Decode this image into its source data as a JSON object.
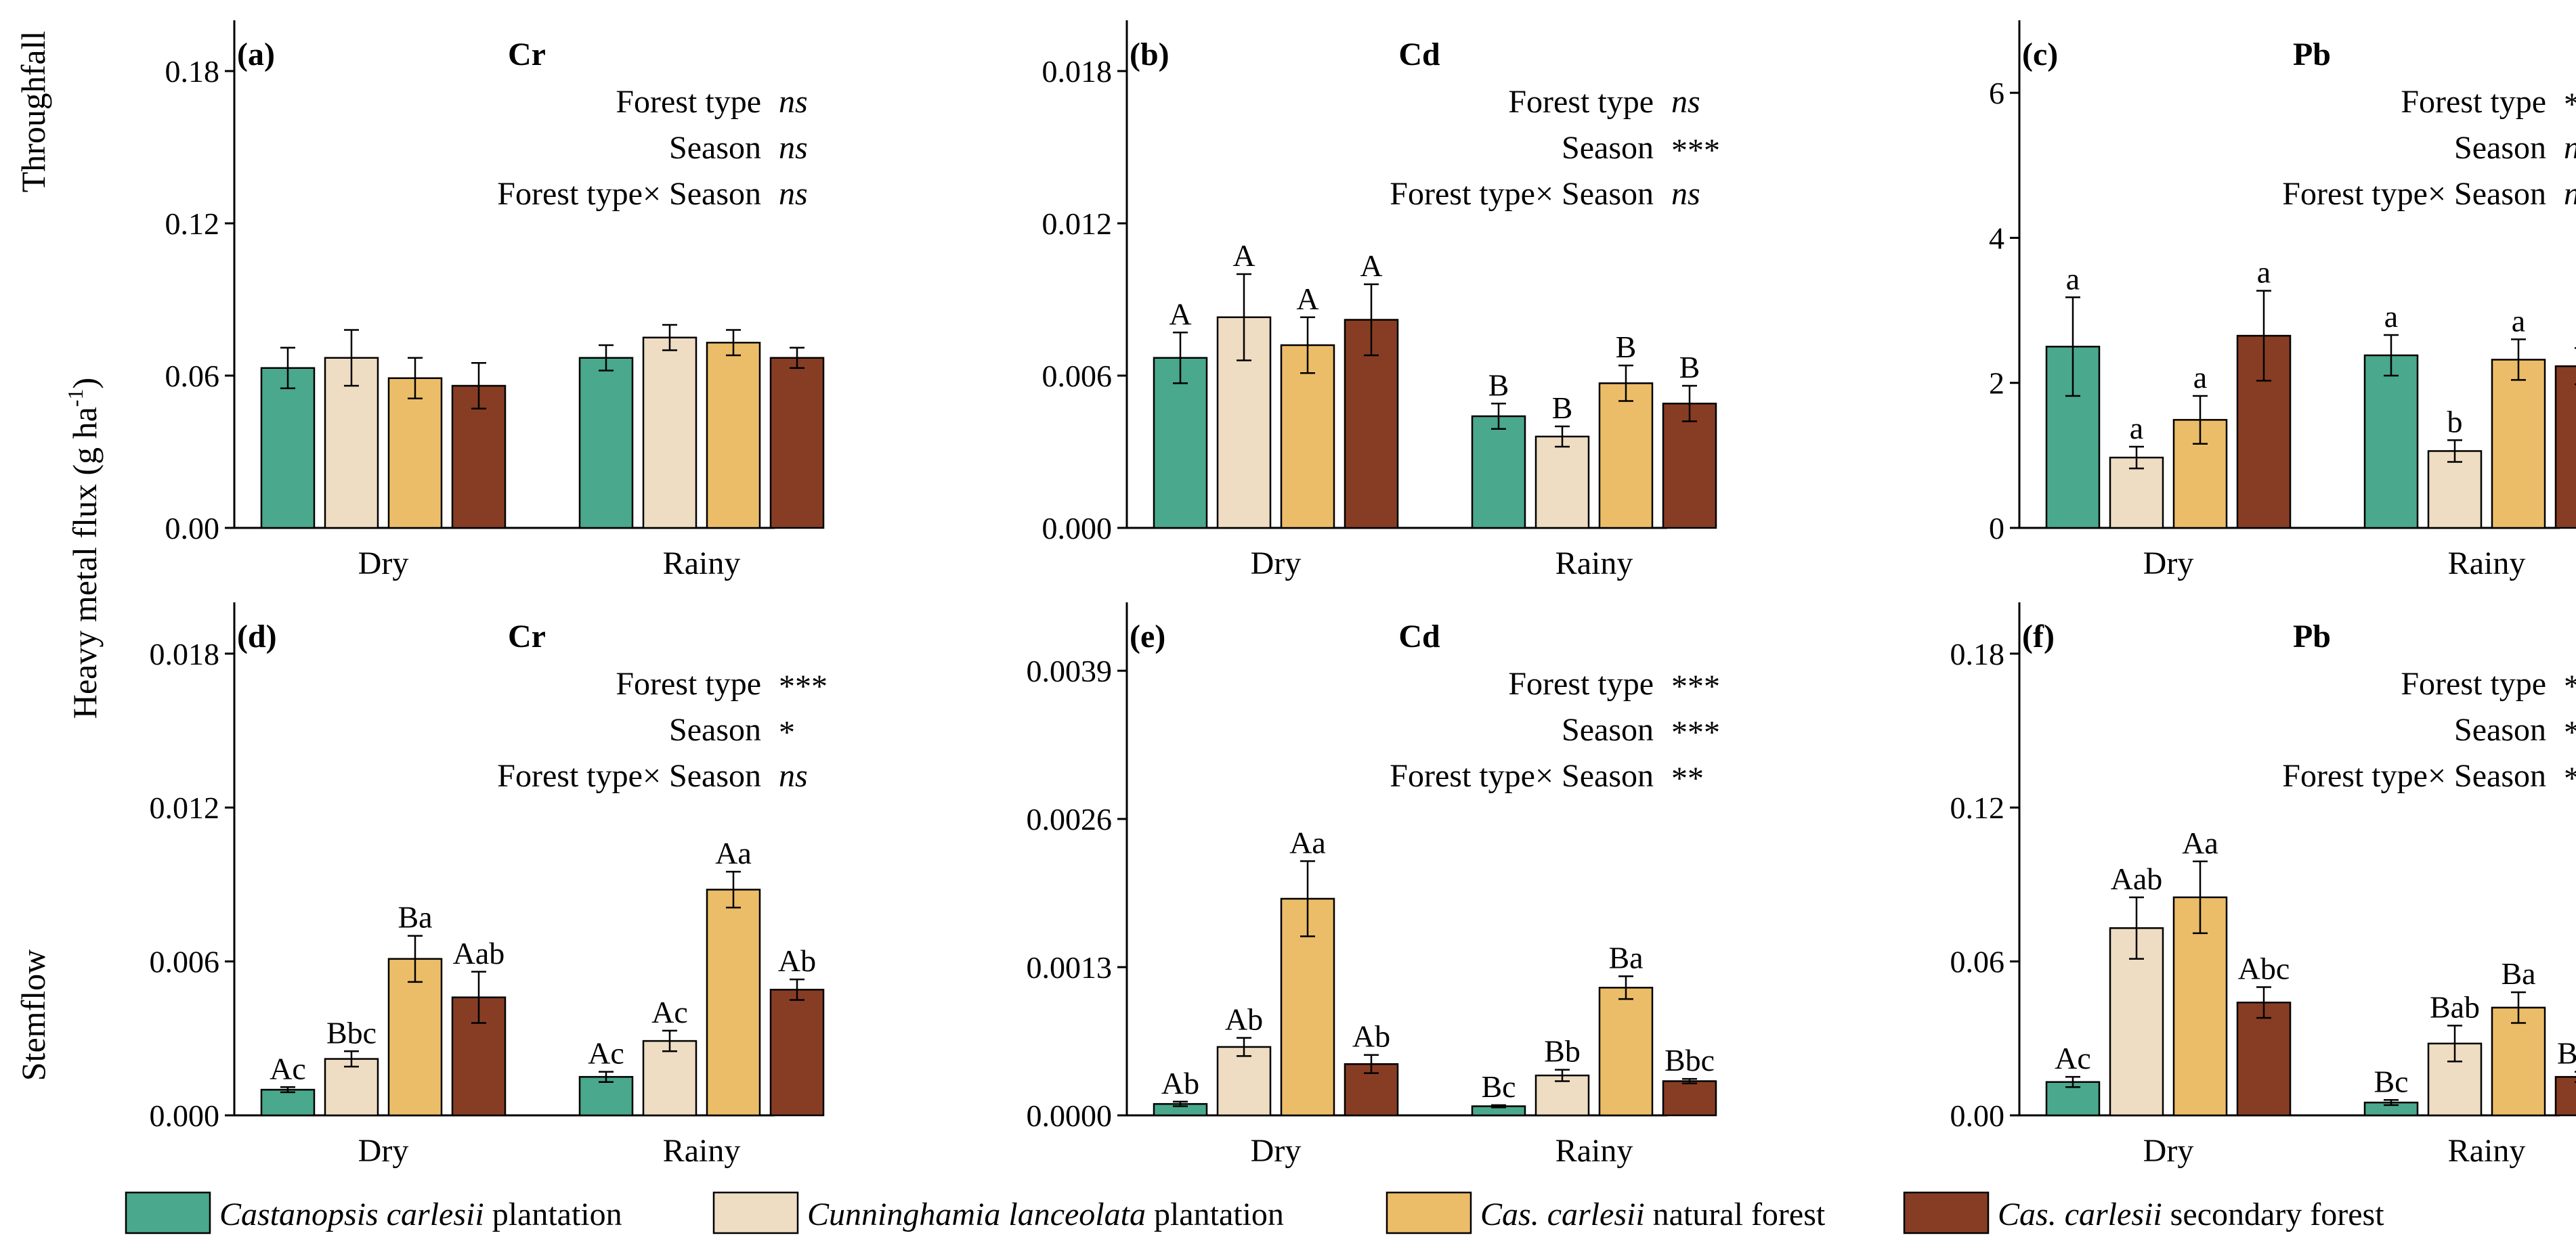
{
  "figure": {
    "row_labels": [
      "Throughfall",
      "Stemflow"
    ],
    "y_axis_label_main": "Heavy metal flux (g ha",
    "y_axis_label_sup": "-1",
    "y_axis_label_end": ")",
    "legend": [
      {
        "italic": "Castanopsis carlesii",
        "rest": " plantation",
        "color": "#4aa88c"
      },
      {
        "italic": "Cunninghamia lanceolata",
        "rest": " plantation",
        "color": "#eedcc3"
      },
      {
        "italic": "Cas. carlesii",
        "rest": " natural forest",
        "color": "#ecbd68"
      },
      {
        "italic": "Cas. carlesii",
        "rest": " secondary forest",
        "color": "#873d24"
      }
    ]
  },
  "chart_data": [
    {
      "type": "bar",
      "panel": "(a)",
      "title": "Cr",
      "categories": [
        "Dry",
        "Rainy"
      ],
      "yticks": [
        "0.00",
        "0.06",
        "0.12",
        "0.18"
      ],
      "ylim": [
        0,
        0.2
      ],
      "series": [
        {
          "name": "Castanopsis carlesii plantation",
          "values": [
            0.063,
            0.067
          ],
          "errors": [
            0.008,
            0.005
          ],
          "labels": [
            "",
            ""
          ]
        },
        {
          "name": "Cunninghamia lanceolata plantation",
          "values": [
            0.067,
            0.075
          ],
          "errors": [
            0.011,
            0.005
          ],
          "labels": [
            "",
            ""
          ]
        },
        {
          "name": "Cas. carlesii natural forest",
          "values": [
            0.059,
            0.073
          ],
          "errors": [
            0.008,
            0.005
          ],
          "labels": [
            "",
            ""
          ]
        },
        {
          "name": "Cas. carlesii secondary forest",
          "values": [
            0.056,
            0.067
          ],
          "errors": [
            0.009,
            0.004
          ],
          "labels": [
            "",
            ""
          ]
        }
      ],
      "stats": [
        {
          "label": "Forest type",
          "value": "ns"
        },
        {
          "label": "Season",
          "value": "ns"
        },
        {
          "label": "Forest type× Season",
          "value": "ns"
        }
      ]
    },
    {
      "type": "bar",
      "panel": "(b)",
      "title": "Cd",
      "categories": [
        "Dry",
        "Rainy"
      ],
      "yticks": [
        "0.000",
        "0.006",
        "0.012",
        "0.018"
      ],
      "ylim": [
        0,
        0.02
      ],
      "series": [
        {
          "name": "Castanopsis carlesii plantation",
          "values": [
            0.0067,
            0.0044
          ],
          "errors": [
            0.001,
            0.0005
          ],
          "labels": [
            "A",
            "B"
          ]
        },
        {
          "name": "Cunninghamia lanceolata plantation",
          "values": [
            0.0083,
            0.0036
          ],
          "errors": [
            0.0017,
            0.0004
          ],
          "labels": [
            "A",
            "B"
          ]
        },
        {
          "name": "Cas. carlesii natural forest",
          "values": [
            0.0072,
            0.0057
          ],
          "errors": [
            0.0011,
            0.0007
          ],
          "labels": [
            "A",
            "B"
          ]
        },
        {
          "name": "Cas. carlesii secondary forest",
          "values": [
            0.0082,
            0.0049
          ],
          "errors": [
            0.0014,
            0.0007
          ],
          "labels": [
            "A",
            "B"
          ]
        }
      ],
      "stats": [
        {
          "label": "Forest type",
          "value": "ns"
        },
        {
          "label": "Season",
          "value": "***"
        },
        {
          "label": "Forest type× Season",
          "value": "ns"
        }
      ]
    },
    {
      "type": "bar",
      "panel": "(c)",
      "title": "Pb",
      "categories": [
        "Dry",
        "Rainy"
      ],
      "yticks": [
        "0",
        "2",
        "4",
        "6"
      ],
      "ylim": [
        0,
        7
      ],
      "series": [
        {
          "name": "Castanopsis carlesii plantation",
          "values": [
            2.5,
            2.38
          ],
          "errors": [
            0.68,
            0.28
          ],
          "labels": [
            "a",
            "a"
          ]
        },
        {
          "name": "Cunninghamia lanceolata plantation",
          "values": [
            0.97,
            1.06
          ],
          "errors": [
            0.15,
            0.15
          ],
          "labels": [
            "a",
            "b"
          ]
        },
        {
          "name": "Cas. carlesii natural forest",
          "values": [
            1.49,
            2.32
          ],
          "errors": [
            0.33,
            0.28
          ],
          "labels": [
            "a",
            "a"
          ]
        },
        {
          "name": "Cas. carlesii secondary forest",
          "values": [
            2.65,
            2.23
          ],
          "errors": [
            0.62,
            0.25
          ],
          "labels": [
            "a",
            "a"
          ]
        }
      ],
      "stats": [
        {
          "label": "Forest type",
          "value": "***"
        },
        {
          "label": "Season",
          "value": "ns"
        },
        {
          "label": "Forest type× Season",
          "value": "ns"
        }
      ]
    },
    {
      "type": "bar",
      "panel": "(d)",
      "title": "Cr",
      "categories": [
        "Dry",
        "Rainy"
      ],
      "yticks": [
        "0.000",
        "0.006",
        "0.012",
        "0.018"
      ],
      "ylim": [
        0,
        0.02
      ],
      "series": [
        {
          "name": "Castanopsis carlesii plantation",
          "values": [
            0.001,
            0.0015
          ],
          "errors": [
            0.0001,
            0.0002
          ],
          "labels": [
            "Ac",
            "Ac"
          ]
        },
        {
          "name": "Cunninghamia lanceolata plantation",
          "values": [
            0.0022,
            0.0029
          ],
          "errors": [
            0.0003,
            0.0004
          ],
          "labels": [
            "Bbc",
            "Ac"
          ]
        },
        {
          "name": "Cas. carlesii natural forest",
          "values": [
            0.0061,
            0.0088
          ],
          "errors": [
            0.0009,
            0.0007
          ],
          "labels": [
            "Ba",
            "Aa"
          ]
        },
        {
          "name": "Cas. carlesii secondary forest",
          "values": [
            0.0046,
            0.0049
          ],
          "errors": [
            0.001,
            0.0004
          ],
          "labels": [
            "Aab",
            "Ab"
          ]
        }
      ],
      "stats": [
        {
          "label": "Forest type",
          "value": "***"
        },
        {
          "label": "Season",
          "value": "*"
        },
        {
          "label": "Forest type× Season",
          "value": "ns"
        }
      ]
    },
    {
      "type": "bar",
      "panel": "(e)",
      "title": "Cd",
      "categories": [
        "Dry",
        "Rainy"
      ],
      "yticks": [
        "0.0000",
        "0.0013",
        "0.0026",
        "0.0039"
      ],
      "ylim": [
        0,
        0.0045
      ],
      "series": [
        {
          "name": "Castanopsis carlesii plantation",
          "values": [
            0.0001,
            8e-05
          ],
          "errors": [
            2e-05,
            1e-05
          ],
          "labels": [
            "Ab",
            "Bc"
          ]
        },
        {
          "name": "Cunninghamia lanceolata plantation",
          "values": [
            0.0006,
            0.00035
          ],
          "errors": [
            8e-05,
            5e-05
          ],
          "labels": [
            "Ab",
            "Bb"
          ]
        },
        {
          "name": "Cas. carlesii natural forest",
          "values": [
            0.0019,
            0.00112
          ],
          "errors": [
            0.00033,
            0.0001
          ],
          "labels": [
            "Aa",
            "Ba"
          ]
        },
        {
          "name": "Cas. carlesii secondary forest",
          "values": [
            0.00045,
            0.0003
          ],
          "errors": [
            8e-05,
            2e-05
          ],
          "labels": [
            "Ab",
            "Bbc"
          ]
        }
      ],
      "stats": [
        {
          "label": "Forest type",
          "value": "***"
        },
        {
          "label": "Season",
          "value": "***"
        },
        {
          "label": "Forest type× Season",
          "value": "**"
        }
      ]
    },
    {
      "type": "bar",
      "panel": "(f)",
      "title": "Pb",
      "categories": [
        "Dry",
        "Rainy"
      ],
      "yticks": [
        "0.00",
        "0.06",
        "0.12",
        "0.18"
      ],
      "ylim": [
        0,
        0.2
      ],
      "series": [
        {
          "name": "Castanopsis carlesii plantation",
          "values": [
            0.013,
            0.005
          ],
          "errors": [
            0.002,
            0.001
          ],
          "labels": [
            "Ac",
            "Bc"
          ]
        },
        {
          "name": "Cunninghamia lanceolata plantation",
          "values": [
            0.073,
            0.028
          ],
          "errors": [
            0.012,
            0.007
          ],
          "labels": [
            "Aab",
            "Bab"
          ]
        },
        {
          "name": "Cas. carlesii natural forest",
          "values": [
            0.085,
            0.042
          ],
          "errors": [
            0.014,
            0.006
          ],
          "labels": [
            "Aa",
            "Ba"
          ]
        },
        {
          "name": "Cas. carlesii secondary forest",
          "values": [
            0.044,
            0.015
          ],
          "errors": [
            0.006,
            0.002
          ],
          "labels": [
            "Abc",
            "Bbc"
          ]
        }
      ],
      "stats": [
        {
          "label": "Forest type",
          "value": "***"
        },
        {
          "label": "Season",
          "value": "***"
        },
        {
          "label": "Forest type× Season",
          "value": "*"
        }
      ]
    }
  ]
}
